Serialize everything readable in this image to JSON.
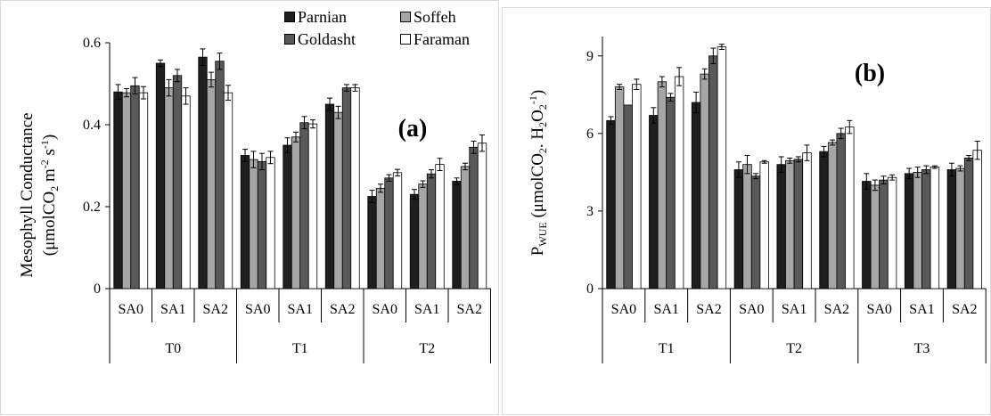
{
  "legend": {
    "items": [
      {
        "label": "Parnian",
        "color": "#1f1f1f"
      },
      {
        "label": "Soffeh",
        "color": "#a6a6a6"
      },
      {
        "label": "Goldasht",
        "color": "#595959"
      },
      {
        "label": "Faraman",
        "color": "#ffffff"
      }
    ]
  },
  "chart_data": [
    {
      "type": "bar",
      "panel_label": "(a)",
      "ylabel_line1": "Mesophyll Conductance",
      "ylabel_line2_prefix": "(μmolCO",
      "ylabel_line2_sub": "2",
      "ylabel_line2_mid": " m",
      "ylabel_line2_sup1": "-2",
      "ylabel_line2_s": " s",
      "ylabel_line2_sup2": "-1",
      "ylabel_line2_suffix": ")",
      "ylim": [
        0,
        0.6
      ],
      "yticks": [
        0,
        0.2,
        0.4,
        0.6
      ],
      "ytick_labels": [
        "0",
        "0.2",
        "0.4",
        "0.6"
      ],
      "groups": [
        "T0",
        "T1",
        "T2"
      ],
      "subcategories": [
        "SA0",
        "SA1",
        "SA2"
      ],
      "series": [
        {
          "name": "Parnian",
          "values": [
            0.48,
            0.55,
            0.565,
            0.325,
            0.35,
            0.45,
            0.225,
            0.23,
            0.262
          ],
          "errors": [
            0.018,
            0.008,
            0.02,
            0.015,
            0.018,
            0.015,
            0.015,
            0.012,
            0.008
          ]
        },
        {
          "name": "Soffeh",
          "values": [
            0.478,
            0.49,
            0.51,
            0.315,
            0.37,
            0.43,
            0.245,
            0.255,
            0.298
          ],
          "errors": [
            0.01,
            0.02,
            0.018,
            0.02,
            0.012,
            0.015,
            0.01,
            0.008,
            0.008
          ]
        },
        {
          "name": "Goldasht",
          "values": [
            0.495,
            0.52,
            0.555,
            0.31,
            0.405,
            0.49,
            0.27,
            0.28,
            0.345
          ],
          "errors": [
            0.02,
            0.015,
            0.02,
            0.02,
            0.015,
            0.008,
            0.008,
            0.01,
            0.015
          ]
        },
        {
          "name": "Faraman",
          "values": [
            0.478,
            0.47,
            0.478,
            0.32,
            0.402,
            0.49,
            0.283,
            0.303,
            0.355
          ],
          "errors": [
            0.015,
            0.02,
            0.018,
            0.015,
            0.01,
            0.008,
            0.008,
            0.015,
            0.02
          ]
        }
      ]
    },
    {
      "type": "bar",
      "panel_label": "(b)",
      "ylabel_p": "P",
      "ylabel_p_sub": "WUE",
      "ylabel_rest_a": " (μmolCO",
      "ylabel_sub1": "2",
      "ylabel_rest_b": ". H",
      "ylabel_sub2": "2",
      "ylabel_rest_c": "O",
      "ylabel_sub3": "2",
      "ylabel_sup": "-1",
      "ylabel_rest_d": ")",
      "ylim": [
        0,
        9.75
      ],
      "yticks": [
        0,
        3,
        6,
        9
      ],
      "ytick_labels": [
        "0",
        "3",
        "6",
        "9"
      ],
      "groups": [
        "T1",
        "T2",
        "T3"
      ],
      "subcategories": [
        "SA0",
        "SA1",
        "SA2"
      ],
      "series": [
        {
          "name": "Parnian",
          "values": [
            6.5,
            6.7,
            7.2,
            4.6,
            4.8,
            5.3,
            4.15,
            4.45,
            4.6
          ],
          "errors": [
            0.15,
            0.3,
            0.4,
            0.3,
            0.3,
            0.2,
            0.3,
            0.2,
            0.25
          ]
        },
        {
          "name": "Soffeh",
          "values": [
            7.8,
            8.0,
            8.3,
            4.8,
            4.95,
            5.65,
            4.0,
            4.5,
            4.65
          ],
          "errors": [
            0.1,
            0.2,
            0.2,
            0.35,
            0.1,
            0.1,
            0.2,
            0.2,
            0.1
          ]
        },
        {
          "name": "Goldasht",
          "values": [
            7.1,
            7.4,
            9.0,
            4.35,
            5.0,
            6.0,
            4.2,
            4.6,
            5.05
          ],
          "errors": [
            0.0,
            0.15,
            0.3,
            0.1,
            0.1,
            0.2,
            0.15,
            0.15,
            0.1
          ]
        },
        {
          "name": "Faraman",
          "values": [
            7.9,
            8.2,
            9.35,
            4.9,
            5.25,
            6.25,
            4.3,
            4.7,
            5.35
          ],
          "errors": [
            0.2,
            0.35,
            0.1,
            0.05,
            0.3,
            0.25,
            0.1,
            0.05,
            0.35
          ]
        }
      ]
    }
  ]
}
